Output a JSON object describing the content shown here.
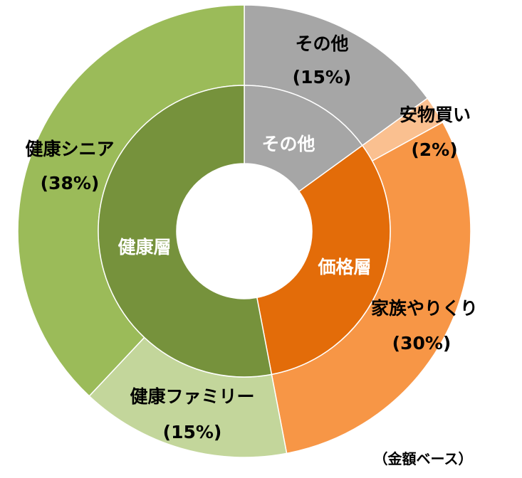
{
  "chart_data": {
    "type": "pie",
    "subtype": "double-donut",
    "note_label": "（金額ベース）",
    "inner_ring": [
      {
        "name": "その他",
        "value": 15,
        "color": "#a6a6a6",
        "text_color": "#ffffff"
      },
      {
        "name": "価格層",
        "value": 32,
        "color": "#e36c09",
        "text_color": "#ffffff"
      },
      {
        "name": "健康層",
        "value": 53,
        "color": "#76923c",
        "text_color": "#ffffff"
      }
    ],
    "outer_ring": [
      {
        "name": "その他",
        "value": 15,
        "percent_label": "(15%)",
        "color": "#a6a6a6"
      },
      {
        "name": "安物買い",
        "value": 2,
        "percent_label": "(2%)",
        "color": "#fac090"
      },
      {
        "name": "家族やりくり",
        "value": 30,
        "percent_label": "(30%)",
        "color": "#f79646"
      },
      {
        "name": "健康ファミリー",
        "value": 15,
        "percent_label": "(15%)",
        "color": "#c3d69b"
      },
      {
        "name": "健康シニア",
        "value": 38,
        "percent_label": "(38%)",
        "color": "#9bbb59"
      }
    ]
  }
}
